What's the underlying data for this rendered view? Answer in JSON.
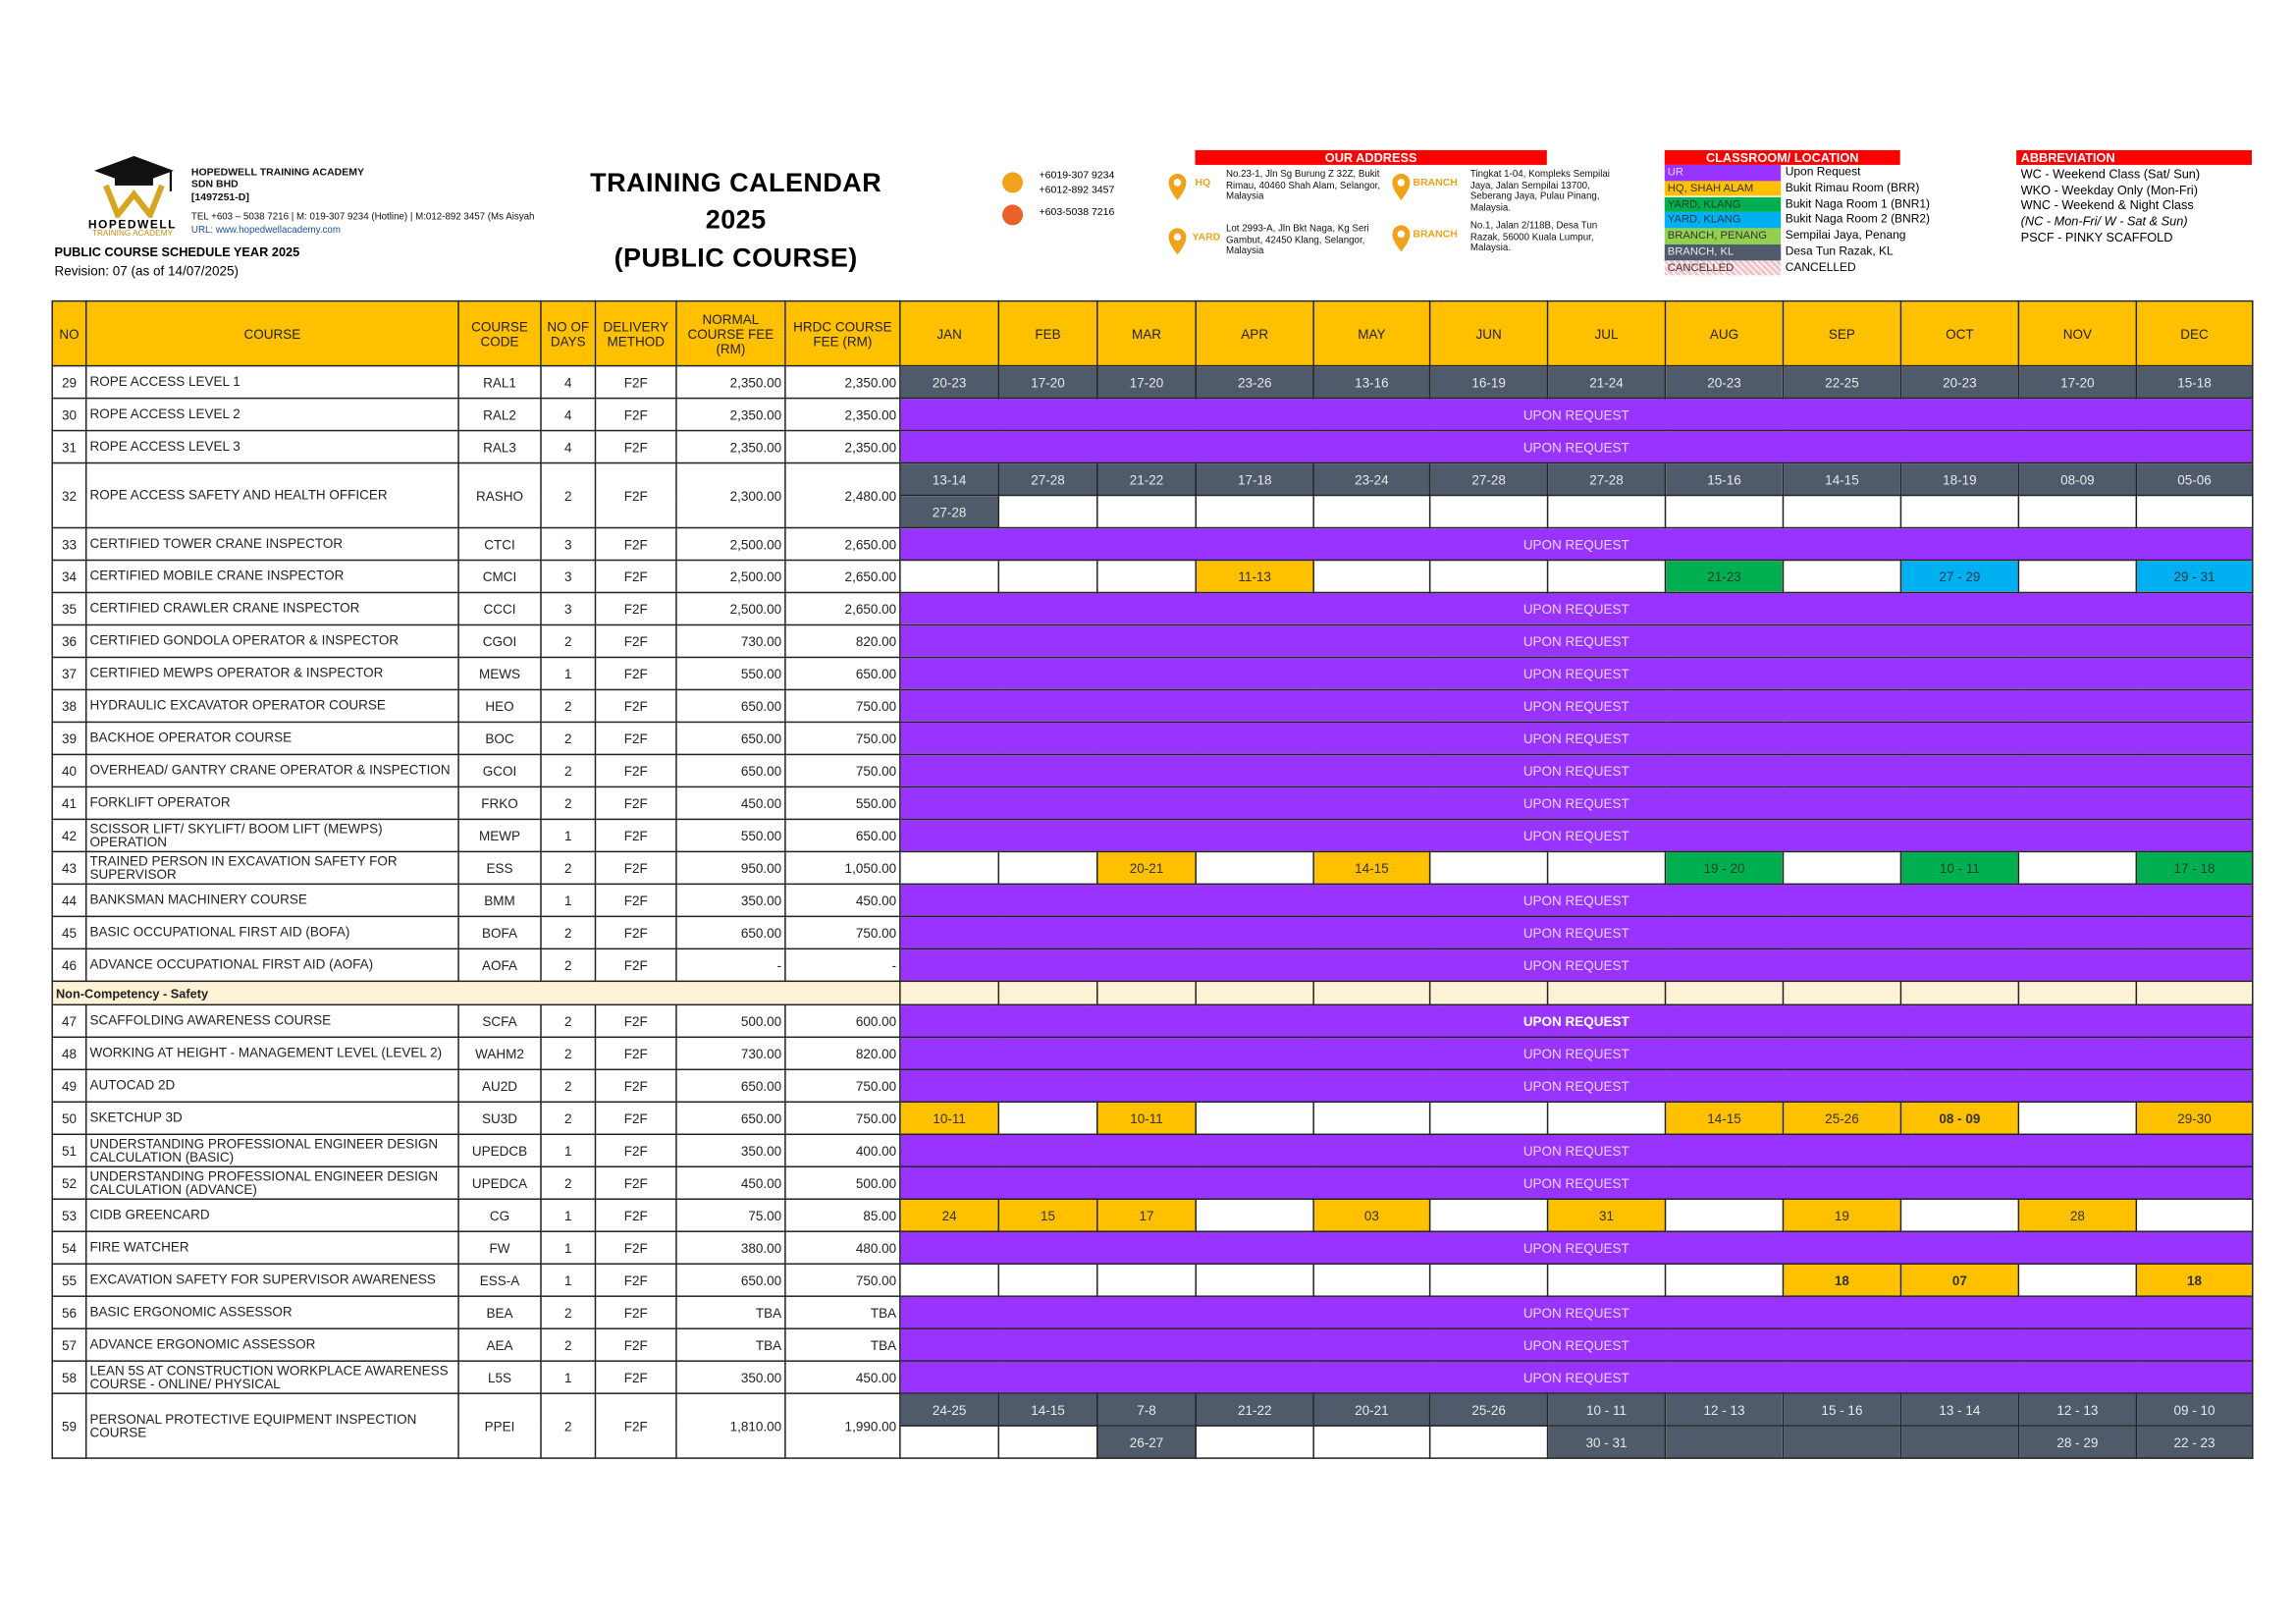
{
  "header": {
    "logo": {
      "name": "HOPEDWELL",
      "tagline": "TRAINING ACADEMY"
    },
    "company": [
      "HOPEDWELL TRAINING ACADEMY",
      "SDN BHD",
      "[1497251-D]",
      "TEL +603 – 5038 7216 | M: 019-307 9234 (Hotline) | M:012-892 3457 (Ms Aisyah",
      "URL: www.hopedwellacademy.com"
    ],
    "schedule_year": "PUBLIC COURSE SCHEDULE YEAR 2025",
    "revision": "Revision: 07 (as of 14/07/2025)",
    "title": [
      "TRAINING CALENDAR",
      "2025",
      "(PUBLIC COURSE)"
    ],
    "phones": [
      "+6019-307 9234",
      "+6012-892 3457",
      "+603-5038 7216"
    ],
    "address_title": "OUR ADDRESS",
    "addresses": [
      {
        "label": "HQ",
        "text": "No.23-1, Jln Sg Burung Z 32Z, Bukit Rimau, 40460 Shah Alam, Selangor, Malaysia"
      },
      {
        "label": "BRANCH",
        "text": "Tingkat 1-04, Kompleks Sempilai Jaya, Jalan Sempilai 13700, Seberang Jaya, Pulau Pinang, Malaysia."
      },
      {
        "label": "YARD",
        "text": "Lot 2993-A, Jln Bkt Naga, Kg Seri Gambut, 42450 Klang, Selangor, Malaysia"
      },
      {
        "label": "BRANCH",
        "text": "No.1, Jalan 2/118B, Desa Tun Razak, 56000 Kuala Lumpur, Malaysia."
      }
    ],
    "location_title": "CLASSROOM/ LOCATION",
    "locations": [
      {
        "swatch": "UR",
        "text": "Upon Request",
        "color": "#9933ff",
        "text_color": "#e6d5ff"
      },
      {
        "swatch": "HQ, SHAH ALAM",
        "text": "Bukit Rimau Room (BRR)",
        "color": "#ffc000",
        "text_color": "#333333"
      },
      {
        "swatch": "YARD, KLANG",
        "text": "Bukit Naga Room 1 (BNR1)",
        "color": "#00b050",
        "text_color": "#1f3f2a"
      },
      {
        "swatch": "YARD, KLANG",
        "text": "Bukit Naga Room 2 (BNR2)",
        "color": "#00b0f0",
        "text_color": "#1f3a4a"
      },
      {
        "swatch": "BRANCH, PENANG",
        "text": "Sempilai Jaya, Penang",
        "color": "#92d050",
        "text_color": "#333333"
      },
      {
        "swatch": "BRANCH, KL",
        "text": "Desa Tun Razak, KL",
        "color": "#4f5b6b",
        "text_color": "#e8e8e8"
      },
      {
        "swatch": "CANCELLED",
        "text": "CANCELLED",
        "color": "#f4c2c8",
        "text_color": "#333333"
      }
    ],
    "abbreviation_title": "ABBREVIATION",
    "abbreviations": [
      "WC - Weekend Class (Sat/ Sun)",
      "WKO - Weekday Only (Mon-Fri)",
      "WNC - Weekend & Night Class",
      "(NC - Mon-Fri/ W - Sat & Sun)",
      "PSCF - PINKY SCAFFOLD"
    ]
  },
  "table": {
    "columns": [
      "NO",
      "COURSE",
      "COURSE CODE",
      "NO OF DAYS",
      "DELIVERY METHOD",
      "NORMAL COURSE FEE (RM)",
      "HRDC COURSE FEE (RM)"
    ],
    "months": [
      "JAN",
      "FEB",
      "MAR",
      "APR",
      "MAY",
      "JUN",
      "JUL",
      "AUG",
      "SEP",
      "OCT",
      "NOV",
      "DEC"
    ],
    "body": [
      {
        "no": 29,
        "course": "ROPE ACCESS LEVEL 1",
        "code": "RAL1",
        "days": 4,
        "method": "F2F",
        "normal_fee": "2,350.00",
        "hrdc_fee": "2,350.00",
        "schedule": [
          [
            {
              "text": "20-23",
              "loc": 5
            },
            {
              "text": "17-20",
              "loc": 5
            },
            {
              "text": "17-20",
              "loc": 5
            },
            {
              "text": "23-26",
              "loc": 5
            },
            {
              "text": "13-16",
              "loc": 5
            },
            {
              "text": "16-19",
              "loc": 5
            },
            {
              "text": "21-24",
              "loc": 5
            },
            {
              "text": "20-23",
              "loc": 5
            },
            {
              "text": "22-25",
              "loc": 5
            },
            {
              "text": "20-23",
              "loc": 5
            },
            {
              "text": "17-20",
              "loc": 5
            },
            {
              "text": "15-18",
              "loc": 5
            }
          ]
        ]
      },
      {
        "no": 30,
        "course": "ROPE ACCESS LEVEL 2",
        "code": "RAL2",
        "days": 4,
        "method": "F2F",
        "normal_fee": "2,350.00",
        "hrdc_fee": "2,350.00",
        "schedule": "UPON REQUEST"
      },
      {
        "no": 31,
        "course": "ROPE ACCESS LEVEL 3",
        "code": "RAL3",
        "days": 4,
        "method": "F2F",
        "normal_fee": "2,350.00",
        "hrdc_fee": "2,350.00",
        "schedule": "UPON REQUEST"
      },
      {
        "no": 32,
        "course": "ROPE ACCESS SAFETY AND HEALTH OFFICER",
        "code": "RASHO",
        "days": 2,
        "method": "F2F",
        "normal_fee": "2,300.00",
        "hrdc_fee": "2,480.00",
        "schedule": [
          [
            {
              "text": "13-14",
              "loc": 5
            },
            {
              "text": "27-28",
              "loc": 5
            },
            {
              "text": "21-22",
              "loc": 5
            },
            {
              "text": "17-18",
              "loc": 5
            },
            {
              "text": "23-24",
              "loc": 5
            },
            {
              "text": "27-28",
              "loc": 5
            },
            {
              "text": "27-28",
              "loc": 5
            },
            {
              "text": "15-16",
              "loc": 5
            },
            {
              "text": "14-15",
              "loc": 5
            },
            {
              "text": "18-19",
              "loc": 5
            },
            {
              "text": "08-09",
              "loc": 5
            },
            {
              "text": "05-06",
              "loc": 5
            }
          ],
          [
            {
              "text": "27-28",
              "loc": 5
            },
            null,
            null,
            null,
            null,
            null,
            null,
            null,
            null,
            null,
            null,
            null
          ]
        ]
      },
      {
        "no": 33,
        "course": "CERTIFIED TOWER CRANE INSPECTOR",
        "code": "CTCI",
        "days": 3,
        "method": "F2F",
        "normal_fee": "2,500.00",
        "hrdc_fee": "2,650.00",
        "schedule": "UPON REQUEST"
      },
      {
        "no": 34,
        "course": "CERTIFIED MOBILE CRANE INSPECTOR",
        "code": "CMCI",
        "days": 3,
        "method": "F2F",
        "normal_fee": "2,500.00",
        "hrdc_fee": "2,650.00",
        "schedule": [
          [
            null,
            null,
            null,
            {
              "text": "11-13",
              "loc": 1
            },
            null,
            null,
            null,
            {
              "text": "21-23",
              "loc": 2
            },
            null,
            {
              "text": "27 - 29",
              "loc": 3
            },
            null,
            {
              "text": "29 - 31",
              "loc": 3
            }
          ]
        ]
      },
      {
        "no": 35,
        "course": "CERTIFIED CRAWLER CRANE INSPECTOR",
        "code": "CCCI",
        "days": 3,
        "method": "F2F",
        "normal_fee": "2,500.00",
        "hrdc_fee": "2,650.00",
        "schedule": "UPON REQUEST"
      },
      {
        "no": 36,
        "course": "CERTIFIED GONDOLA OPERATOR & INSPECTOR",
        "code": "CGOI",
        "days": 2,
        "method": "F2F",
        "normal_fee": "730.00",
        "hrdc_fee": "820.00",
        "schedule": "UPON REQUEST"
      },
      {
        "no": 37,
        "course": "CERTIFIED MEWPS OPERATOR & INSPECTOR",
        "code": "MEWS",
        "days": 1,
        "method": "F2F",
        "normal_fee": "550.00",
        "hrdc_fee": "650.00",
        "schedule": "UPON REQUEST"
      },
      {
        "no": 38,
        "course": "HYDRAULIC EXCAVATOR OPERATOR COURSE",
        "code": "HEO",
        "days": 2,
        "method": "F2F",
        "normal_fee": "650.00",
        "hrdc_fee": "750.00",
        "schedule": "UPON REQUEST"
      },
      {
        "no": 39,
        "course": "BACKHOE OPERATOR COURSE",
        "code": "BOC",
        "days": 2,
        "method": "F2F",
        "normal_fee": "650.00",
        "hrdc_fee": "750.00",
        "schedule": "UPON REQUEST"
      },
      {
        "no": 40,
        "course": "OVERHEAD/ GANTRY CRANE OPERATOR & INSPECTION",
        "code": "GCOI",
        "days": 2,
        "method": "F2F",
        "normal_fee": "650.00",
        "hrdc_fee": "750.00",
        "schedule": "UPON REQUEST"
      },
      {
        "no": 41,
        "course": "FORKLIFT OPERATOR",
        "code": "FRKO",
        "days": 2,
        "method": "F2F",
        "normal_fee": "450.00",
        "hrdc_fee": "550.00",
        "schedule": "UPON REQUEST"
      },
      {
        "no": 42,
        "course": "SCISSOR LIFT/ SKYLIFT/ BOOM LIFT (MEWPS) OPERATION",
        "code": "MEWP",
        "days": 1,
        "method": "F2F",
        "normal_fee": "550.00",
        "hrdc_fee": "650.00",
        "schedule": "UPON REQUEST"
      },
      {
        "no": 43,
        "course": "TRAINED PERSON IN EXCAVATION SAFETY FOR SUPERVISOR",
        "code": "ESS",
        "days": 2,
        "method": "F2F",
        "normal_fee": "950.00",
        "hrdc_fee": "1,050.00",
        "schedule": [
          [
            null,
            null,
            {
              "text": "20-21",
              "loc": 1
            },
            null,
            {
              "text": "14-15",
              "loc": 1
            },
            null,
            null,
            {
              "text": "19 - 20",
              "loc": 2
            },
            null,
            {
              "text": "10 - 11",
              "loc": 2
            },
            null,
            {
              "text": "17 - 18",
              "loc": 2
            }
          ]
        ]
      },
      {
        "no": 44,
        "course": "BANKSMAN MACHINERY COURSE",
        "code": "BMM",
        "days": 1,
        "method": "F2F",
        "normal_fee": "350.00",
        "hrdc_fee": "450.00",
        "schedule": "UPON REQUEST"
      },
      {
        "no": 45,
        "course": "BASIC OCCUPATIONAL FIRST AID (BOFA)",
        "code": "BOFA",
        "days": 2,
        "method": "F2F",
        "normal_fee": "650.00",
        "hrdc_fee": "750.00",
        "schedule": "UPON REQUEST"
      },
      {
        "no": 46,
        "course": "ADVANCE OCCUPATIONAL FIRST AID (AOFA)",
        "code": "AOFA",
        "days": 2,
        "method": "F2F",
        "normal_fee": "-",
        "hrdc_fee": "-",
        "schedule": "UPON REQUEST"
      },
      {
        "section": "Non-Competency - Safety"
      },
      {
        "no": 47,
        "course": "SCAFFOLDING AWARENESS COURSE",
        "code": "SCFA",
        "days": 2,
        "method": "F2F",
        "normal_fee": "500.00",
        "hrdc_fee": "600.00",
        "schedule": "UPON REQUEST",
        "bold": true
      },
      {
        "no": 48,
        "course": "WORKING AT HEIGHT - MANAGEMENT LEVEL (LEVEL 2)",
        "code": "WAHM2",
        "days": 2,
        "method": "F2F",
        "normal_fee": "730.00",
        "hrdc_fee": "820.00",
        "schedule": "UPON REQUEST"
      },
      {
        "no": 49,
        "course": "AUTOCAD 2D",
        "code": "AU2D",
        "days": 2,
        "method": "F2F",
        "normal_fee": "650.00",
        "hrdc_fee": "750.00",
        "schedule": "UPON REQUEST"
      },
      {
        "no": 50,
        "course": "SKETCHUP 3D",
        "code": "SU3D",
        "days": 2,
        "method": "F2F",
        "normal_fee": "650.00",
        "hrdc_fee": "750.00",
        "schedule": [
          [
            {
              "text": "10-11",
              "loc": 1
            },
            null,
            {
              "text": "10-11",
              "loc": 1
            },
            null,
            null,
            null,
            null,
            {
              "text": "14-15",
              "loc": 1
            },
            {
              "text": "25-26",
              "loc": 1
            },
            {
              "text": "08 - 09",
              "loc": 1,
              "bold": true
            },
            null,
            {
              "text": "29-30",
              "loc": 1
            }
          ]
        ]
      },
      {
        "no": 51,
        "course": "UNDERSTANDING PROFESSIONAL ENGINEER DESIGN CALCULATION (BASIC)",
        "code": "UPEDCB",
        "days": 1,
        "method": "F2F",
        "normal_fee": "350.00",
        "hrdc_fee": "400.00",
        "schedule": "UPON REQUEST"
      },
      {
        "no": 52,
        "course": "UNDERSTANDING PROFESSIONAL ENGINEER DESIGN CALCULATION (ADVANCE)",
        "code": "UPEDCA",
        "days": 2,
        "method": "F2F",
        "normal_fee": "450.00",
        "hrdc_fee": "500.00",
        "schedule": "UPON REQUEST"
      },
      {
        "no": 53,
        "course": "CIDB GREENCARD",
        "code": "CG",
        "days": 1,
        "method": "F2F",
        "normal_fee": "75.00",
        "hrdc_fee": "85.00",
        "schedule": [
          [
            {
              "text": "24",
              "loc": 1
            },
            {
              "text": "15",
              "loc": 1
            },
            {
              "text": "17",
              "loc": 1
            },
            null,
            {
              "text": "03",
              "loc": 1
            },
            null,
            {
              "text": "31",
              "loc": 1
            },
            null,
            {
              "text": "19",
              "loc": 1
            },
            null,
            {
              "text": "28",
              "loc": 1
            },
            null
          ]
        ]
      },
      {
        "no": 54,
        "course": "FIRE WATCHER",
        "code": "FW",
        "days": 1,
        "method": "F2F",
        "normal_fee": "380.00",
        "hrdc_fee": "480.00",
        "schedule": "UPON REQUEST"
      },
      {
        "no": 55,
        "course": "EXCAVATION SAFETY FOR SUPERVISOR AWARENESS",
        "code": "ESS-A",
        "days": 1,
        "method": "F2F",
        "normal_fee": "650.00",
        "hrdc_fee": "750.00",
        "schedule": [
          [
            null,
            null,
            null,
            null,
            null,
            null,
            null,
            null,
            {
              "text": "18",
              "loc": 1,
              "bold": true
            },
            {
              "text": "07",
              "loc": 1,
              "bold": true
            },
            null,
            {
              "text": "18",
              "loc": 1,
              "bold": true
            }
          ]
        ]
      },
      {
        "no": 56,
        "course": "BASIC ERGONOMIC ASSESSOR",
        "code": "BEA",
        "days": 2,
        "method": "F2F",
        "normal_fee": "TBA",
        "hrdc_fee": "TBA",
        "schedule": "UPON REQUEST"
      },
      {
        "no": 57,
        "course": "ADVANCE ERGONOMIC ASSESSOR",
        "code": "AEA",
        "days": 2,
        "method": "F2F",
        "normal_fee": "TBA",
        "hrdc_fee": "TBA",
        "schedule": "UPON REQUEST"
      },
      {
        "no": 58,
        "course": "LEAN 5S AT CONSTRUCTION WORKPLACE AWARENESS COURSE - ONLINE/ PHYSICAL",
        "code": "L5S",
        "days": 1,
        "method": "F2F",
        "normal_fee": "350.00",
        "hrdc_fee": "450.00",
        "schedule": "UPON REQUEST"
      },
      {
        "no": 59,
        "course": "PERSONAL PROTECTIVE EQUIPMENT INSPECTION COURSE",
        "code": "PPEI",
        "days": 2,
        "method": "F2F",
        "normal_fee": "1,810.00",
        "hrdc_fee": "1,990.00",
        "schedule": [
          [
            {
              "text": "24-25",
              "loc": 5
            },
            {
              "text": "14-15",
              "loc": 5
            },
            {
              "text": "7-8",
              "loc": 5
            },
            {
              "text": "21-22",
              "loc": 5
            },
            {
              "text": "20-21",
              "loc": 5
            },
            {
              "text": "25-26",
              "loc": 5
            },
            {
              "text": "10 - 11",
              "loc": 5
            },
            {
              "text": "12 - 13",
              "loc": 5
            },
            {
              "text": "15 - 16",
              "loc": 5
            },
            {
              "text": "13 - 14",
              "loc": 5
            },
            {
              "text": "12 - 13",
              "loc": 5
            },
            {
              "text": "09 - 10",
              "loc": 5
            }
          ],
          [
            null,
            null,
            {
              "text": "26-27",
              "loc": 5
            },
            null,
            null,
            null,
            {
              "text": "30 - 31",
              "loc": 5
            },
            {
              "loc": 5
            },
            {
              "loc": 5
            },
            {
              "loc": 5
            },
            {
              "text": "28 - 29",
              "loc": 5
            },
            {
              "text": "22 - 23",
              "loc": 5
            }
          ]
        ]
      }
    ]
  }
}
